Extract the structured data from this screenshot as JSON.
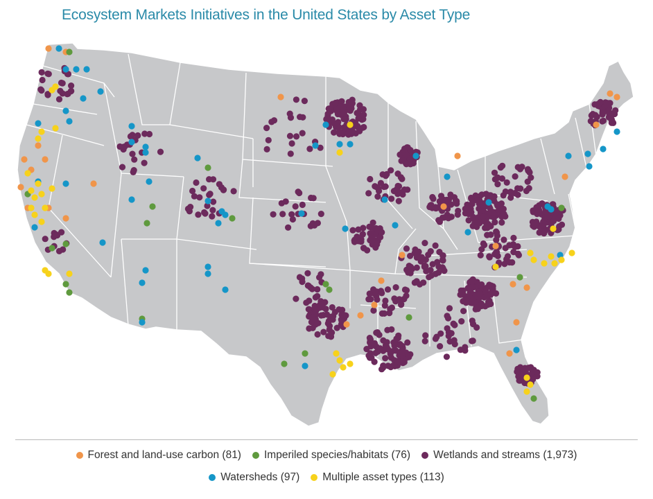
{
  "title": "Ecosystem Markets Initiatives in the United States by Asset Type",
  "map": {
    "region": "United States",
    "landColor": "#c7c8ca",
    "borderColor": "#ffffff"
  },
  "legend": {
    "items": [
      {
        "key": "forest",
        "label": "Forest and land-use carbon",
        "count": "(81)",
        "color": "#f0954a"
      },
      {
        "key": "species",
        "label": "Imperiled species/habitats",
        "count": "(76)",
        "color": "#5f9a3e"
      },
      {
        "key": "wetlands",
        "label": "Wetlands and streams",
        "count": "(1,973)",
        "color": "#6c2a5c"
      },
      {
        "key": "watersheds",
        "label": "Watersheds",
        "count": "(97)",
        "color": "#1596c8"
      },
      {
        "key": "multiple",
        "label": "Multiple asset types",
        "count": "(113)",
        "color": "#f7d21b"
      }
    ]
  }
}
